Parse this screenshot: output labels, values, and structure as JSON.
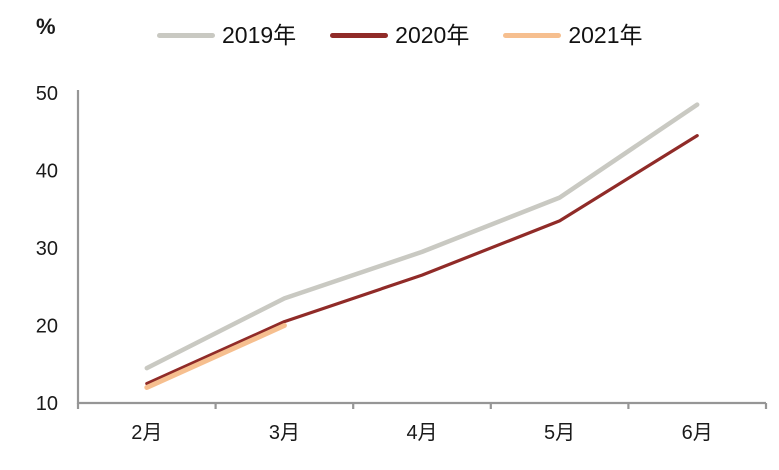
{
  "figure": {
    "unit_label": "%"
  },
  "chart_data": {
    "type": "line",
    "title": "",
    "xlabel": "",
    "ylabel": "%",
    "categories": [
      "2月",
      "3月",
      "4月",
      "5月",
      "6月"
    ],
    "series": [
      {
        "name": "2019年",
        "color": "#C9C9C2",
        "stroke_width": 4.5,
        "values": [
          14.5,
          23.5,
          29.5,
          36.5,
          48.5
        ]
      },
      {
        "name": "2020年",
        "color": "#902B28",
        "stroke_width": 3.2,
        "values": [
          12.5,
          20.5,
          26.5,
          33.5,
          44.5
        ]
      },
      {
        "name": "2021年",
        "color": "#F6BF8F",
        "stroke_width": 5,
        "values": [
          12,
          20
        ]
      }
    ],
    "y_ticks": [
      10,
      20,
      30,
      40,
      50
    ],
    "ylim": [
      10,
      50
    ],
    "grid": false,
    "legend_position": "top",
    "axis_color": "#969696",
    "text_color": "#1a1a1a"
  }
}
